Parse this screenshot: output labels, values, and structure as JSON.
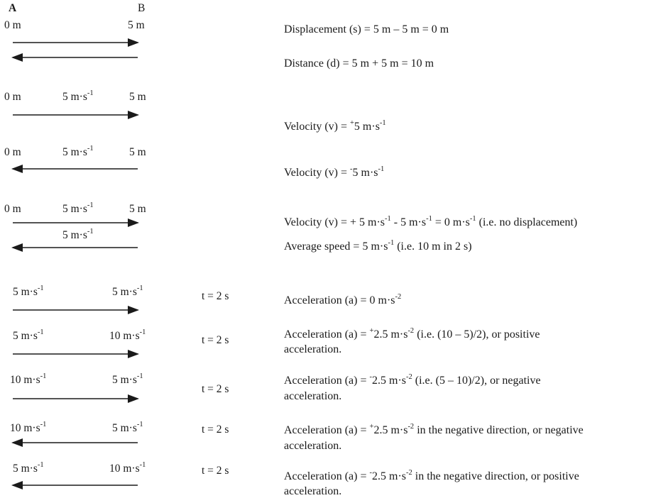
{
  "header": {
    "point_a": "A",
    "point_b": "B"
  },
  "rows": [
    {
      "labels": {
        "left": "0 m",
        "middle": "",
        "right": "5 m"
      },
      "arrows": [
        "right",
        "left"
      ],
      "time": "",
      "explanation": [
        [
          [
            "Displacement (s) =   5 m – 5 m = 0 m",
            "n"
          ]
        ],
        [
          [
            "Distance (d) = 5 m + 5 m = 10 m",
            "n"
          ]
        ]
      ]
    },
    {
      "labels": {
        "left": "0 m",
        "middle": "5 m·s|-1",
        "right": "5 m"
      },
      "arrows": [
        "right"
      ],
      "time": "",
      "explanation": [
        [
          [
            "Velocity (v) = ",
            "n"
          ],
          [
            "+",
            "s"
          ],
          [
            "5 m·s",
            "n"
          ],
          [
            "-1",
            "s"
          ]
        ]
      ]
    },
    {
      "labels": {
        "left": "0 m",
        "middle": "5 m·s|-1",
        "right": "5 m"
      },
      "arrows": [
        "left"
      ],
      "time": "",
      "explanation": [
        [
          [
            "Velocity (v) = ",
            "n"
          ],
          [
            "-",
            "s"
          ],
          [
            "5 m·s",
            "n"
          ],
          [
            "-1",
            "s"
          ]
        ]
      ]
    },
    {
      "labels": {
        "left": "0 m",
        "middle": "5 m·s|-1",
        "right": "5 m",
        "middle2": "5 m·s|-1"
      },
      "arrows": [
        "right",
        "left"
      ],
      "time": "",
      "explanation": [
        [
          [
            "Velocity (v) = + 5 m·s",
            "n"
          ],
          [
            "-1",
            "s"
          ],
          [
            " - 5 m·s",
            "n"
          ],
          [
            "-1",
            "s"
          ],
          [
            " = 0 m·s",
            "n"
          ],
          [
            "-1",
            "s"
          ],
          [
            "  (i.e. no displacement)",
            "n"
          ]
        ],
        [
          [
            "Average speed = 5 m·s",
            "n"
          ],
          [
            "-1",
            "s"
          ],
          [
            " (i.e. 10 m in 2 s)",
            "n"
          ]
        ]
      ]
    },
    {
      "labels": {
        "left": "5 m·s|-1",
        "right": "5 m·s|-1"
      },
      "arrows": [
        "right"
      ],
      "time": "t = 2 s",
      "explanation": [
        [
          [
            "Acceleration (a) = 0 m·s",
            "n"
          ],
          [
            "-2",
            "s"
          ]
        ]
      ]
    },
    {
      "labels": {
        "left": "5 m·s|-1",
        "right": "10 m·s|-1"
      },
      "arrows": [
        "right"
      ],
      "time": "t = 2 s",
      "explanation": [
        [
          [
            "Acceleration (a) = ",
            "n"
          ],
          [
            "+",
            "s"
          ],
          [
            "2.5 m·s",
            "n"
          ],
          [
            "-2",
            "s"
          ],
          [
            " (i.e. (10 – 5)/2), or positive",
            "n"
          ]
        ],
        [
          [
            "acceleration.",
            "n"
          ]
        ]
      ]
    },
    {
      "labels": {
        "left": "10 m·s|-1",
        "right": "5 m·s|-1"
      },
      "arrows": [
        "right"
      ],
      "time": "t = 2 s",
      "explanation": [
        [
          [
            "Acceleration (a) = ",
            "n"
          ],
          [
            "-",
            "s"
          ],
          [
            "2.5 m·s",
            "n"
          ],
          [
            "-2",
            "s"
          ],
          [
            " (i.e. (5 – 10)/2), or negative",
            "n"
          ]
        ],
        [
          [
            "acceleration.",
            "n"
          ]
        ]
      ]
    },
    {
      "labels": {
        "left": "10 m·s|-1",
        "right": "5 m·s|-1"
      },
      "arrows": [
        "left"
      ],
      "time": "t = 2 s",
      "explanation": [
        [
          [
            "Acceleration (a) = ",
            "n"
          ],
          [
            "+",
            "s"
          ],
          [
            "2.5 m·s",
            "n"
          ],
          [
            "-2",
            "s"
          ],
          [
            " in the negative direction, or negative",
            "n"
          ]
        ],
        [
          [
            "acceleration.",
            "n"
          ]
        ]
      ]
    },
    {
      "labels": {
        "left": "5 m·s|-1",
        "right": "10 m·s|-1"
      },
      "arrows": [
        "left"
      ],
      "time": "t = 2 s",
      "explanation": [
        [
          [
            "Acceleration (a) = ",
            "n"
          ],
          [
            "-",
            "s"
          ],
          [
            "2.5 m·s",
            "n"
          ],
          [
            "-2",
            "s"
          ],
          [
            " in the negative direction, or positive",
            "n"
          ]
        ],
        [
          [
            "acceleration.",
            "n"
          ]
        ]
      ]
    }
  ]
}
